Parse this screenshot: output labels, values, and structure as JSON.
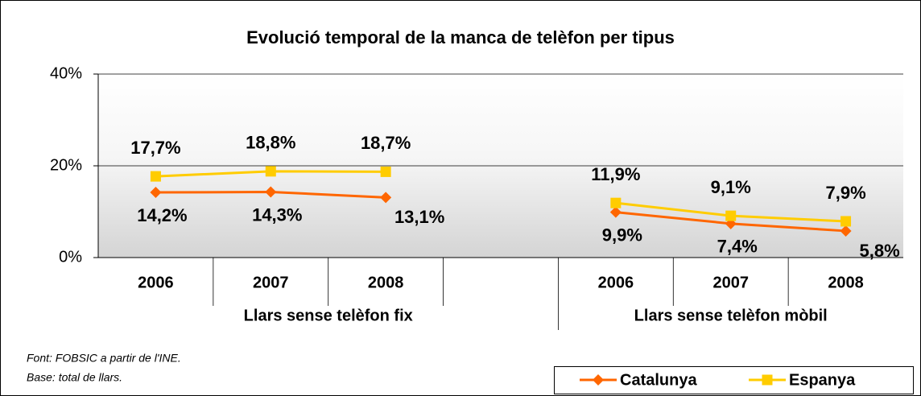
{
  "chart_data": {
    "type": "line",
    "title": "Evolució temporal de la manca de telèfon per tipus",
    "groups": [
      {
        "name": "Llars sense telèfon fix",
        "categories": [
          "2006",
          "2007",
          "2008",
          null
        ]
      },
      {
        "name": "Llars sense telèfon mòbil",
        "categories": [
          "2006",
          "2007",
          "2008"
        ]
      }
    ],
    "series": [
      {
        "name": "Catalunya",
        "color": "#ff6600",
        "marker": "diamond",
        "values": [
          14.2,
          14.3,
          13.1,
          null,
          9.9,
          7.4,
          5.8
        ],
        "value_labels": [
          "14,2%",
          "14,3%",
          "13,1%",
          null,
          "9,9%",
          "7,4%",
          "5,8%"
        ]
      },
      {
        "name": "Espanya",
        "color": "#ffcc00",
        "marker": "square",
        "values": [
          17.7,
          18.8,
          18.7,
          null,
          11.9,
          9.1,
          7.9
        ],
        "value_labels": [
          "17,7%",
          "18,8%",
          "18,7%",
          null,
          "11,9%",
          "9,1%",
          "7,9%"
        ]
      }
    ],
    "ylim": [
      0,
      40
    ],
    "yticks": [
      {
        "value": 0,
        "label": "0%"
      },
      {
        "value": 20,
        "label": "20%"
      },
      {
        "value": 40,
        "label": "40%"
      }
    ],
    "grid": true,
    "legend": "bottom-right",
    "notes": [
      "Font: FOBSIC a partir de l'INE.",
      "Base: total de llars."
    ]
  }
}
